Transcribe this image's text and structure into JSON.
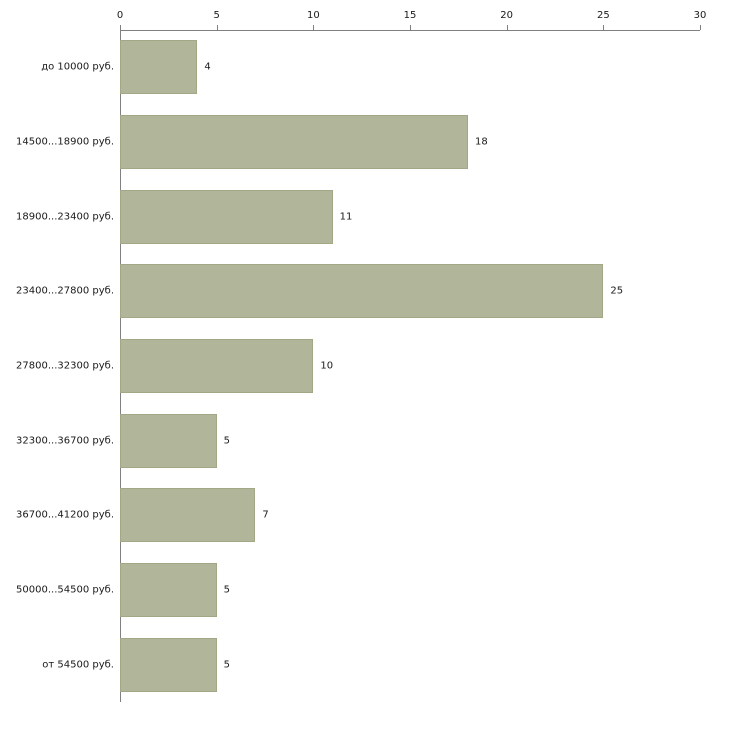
{
  "chart_data": {
    "type": "bar",
    "orientation": "horizontal",
    "title": "",
    "xlabel": "",
    "ylabel": "",
    "categories": [
      "до 10000 руб.",
      "14500...18900 руб.",
      "18900...23400 руб.",
      "23400...27800 руб.",
      "27800...32300 руб.",
      "32300...36700 руб.",
      "36700...41200 руб.",
      "50000...54500 руб.",
      "от 54500 руб."
    ],
    "values": [
      4,
      18,
      11,
      25,
      10,
      5,
      7,
      5,
      5
    ],
    "xlim": [
      0,
      30
    ],
    "x_ticks": [
      0,
      5,
      10,
      15,
      20,
      25,
      30
    ],
    "grid": false,
    "legend": false,
    "colors": {
      "bar_fill": "#b1b69a",
      "bar_border": "#a2a885",
      "axis": "#808080",
      "text": "#1a1a1a",
      "background": "#ffffff"
    }
  }
}
